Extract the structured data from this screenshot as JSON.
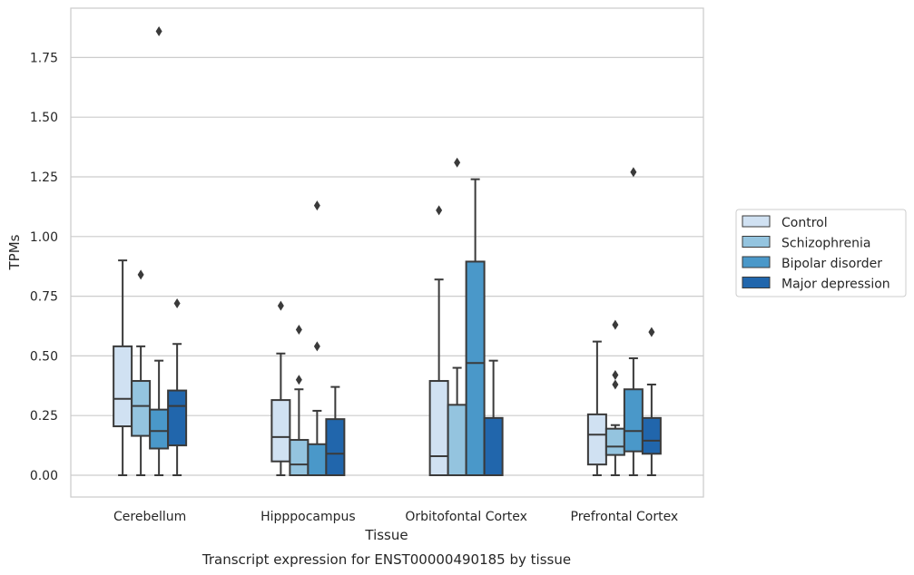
{
  "chart_data": {
    "type": "box",
    "caption": "Transcript expression for ENST00000490185 by tissue",
    "xlabel": "Tissue",
    "ylabel": "TPMs",
    "ylim": [
      -0.09,
      1.95
    ],
    "yticks": [
      "0.00",
      "0.25",
      "0.50",
      "0.75",
      "1.00",
      "1.25",
      "1.50",
      "1.75"
    ],
    "grid": "horizontal",
    "legend_position": "right",
    "categories": [
      "Cerebellum",
      "Hipppocampus",
      "Orbitofontal Cortex",
      "Prefrontal Cortex"
    ],
    "series": [
      {
        "name": "Control",
        "color": "#d0e1f2",
        "boxes": [
          {
            "whislo": 0.0,
            "q1": 0.205,
            "med": 0.32,
            "q3": 0.54,
            "whishi": 0.9,
            "fliers": []
          },
          {
            "whislo": 0.0,
            "q1": 0.058,
            "med": 0.16,
            "q3": 0.315,
            "whishi": 0.51,
            "fliers": [
              0.71
            ]
          },
          {
            "whislo": 0.0,
            "q1": 0.0,
            "med": 0.08,
            "q3": 0.395,
            "whishi": 0.82,
            "fliers": [
              1.11
            ]
          },
          {
            "whislo": 0.0,
            "q1": 0.045,
            "med": 0.17,
            "q3": 0.255,
            "whishi": 0.56,
            "fliers": []
          }
        ]
      },
      {
        "name": "Schizophrenia",
        "color": "#94c4df",
        "boxes": [
          {
            "whislo": 0.0,
            "q1": 0.165,
            "med": 0.29,
            "q3": 0.395,
            "whishi": 0.54,
            "fliers": [
              0.84
            ]
          },
          {
            "whislo": 0.0,
            "q1": 0.0,
            "med": 0.045,
            "q3": 0.148,
            "whishi": 0.36,
            "fliers": [
              0.4,
              0.61
            ]
          },
          {
            "whislo": 0.0,
            "q1": 0.0,
            "med": 0.0,
            "q3": 0.295,
            "whishi": 0.45,
            "fliers": [
              1.31
            ]
          },
          {
            "whislo": 0.0,
            "q1": 0.085,
            "med": 0.12,
            "q3": 0.195,
            "whishi": 0.21,
            "fliers": [
              0.38,
              0.42,
              0.63
            ]
          }
        ]
      },
      {
        "name": "Bipolar disorder",
        "color": "#4a98c9",
        "boxes": [
          {
            "whislo": 0.0,
            "q1": 0.112,
            "med": 0.185,
            "q3": 0.275,
            "whishi": 0.48,
            "fliers": [
              1.86
            ]
          },
          {
            "whislo": 0.0,
            "q1": 0.0,
            "med": 0.0,
            "q3": 0.13,
            "whishi": 0.27,
            "fliers": [
              0.54,
              1.13
            ]
          },
          {
            "whislo": 0.0,
            "q1": 0.0,
            "med": 0.47,
            "q3": 0.895,
            "whishi": 1.24,
            "fliers": []
          },
          {
            "whislo": 0.0,
            "q1": 0.1,
            "med": 0.185,
            "q3": 0.36,
            "whishi": 0.49,
            "fliers": [
              1.27
            ]
          }
        ]
      },
      {
        "name": "Major depression",
        "color": "#2166ac",
        "boxes": [
          {
            "whislo": 0.0,
            "q1": 0.125,
            "med": 0.29,
            "q3": 0.355,
            "whishi": 0.55,
            "fliers": [
              0.72
            ]
          },
          {
            "whislo": 0.0,
            "q1": 0.0,
            "med": 0.09,
            "q3": 0.235,
            "whishi": 0.37,
            "fliers": []
          },
          {
            "whislo": 0.0,
            "q1": 0.0,
            "med": 0.0,
            "q3": 0.24,
            "whishi": 0.48,
            "fliers": []
          },
          {
            "whislo": 0.0,
            "q1": 0.09,
            "med": 0.145,
            "q3": 0.24,
            "whishi": 0.38,
            "fliers": [
              0.6
            ]
          }
        ]
      }
    ]
  }
}
